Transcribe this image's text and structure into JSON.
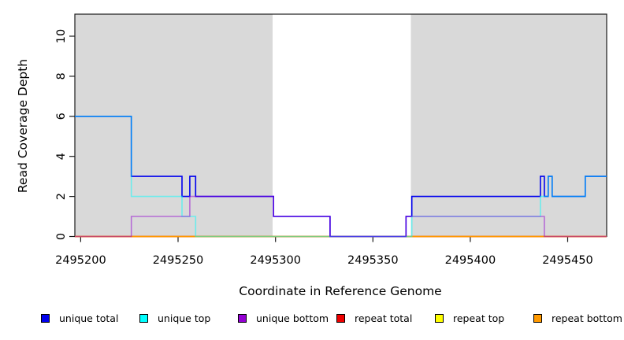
{
  "chart_data": {
    "type": "line",
    "line_style": "step",
    "title": "",
    "xlabel": "Coordinate in Reference Genome",
    "ylabel": "Read Coverage Depth",
    "xlim": [
      2495197,
      2495470
    ],
    "ylim": [
      0,
      11.1
    ],
    "xticks": [
      2495200,
      2495250,
      2495300,
      2495350,
      2495400,
      2495450
    ],
    "yticks": [
      0,
      2,
      4,
      6,
      8,
      10
    ],
    "grid": false,
    "legend_position": "bottom",
    "plot_background": "#FFFFFF",
    "shaded_regions": {
      "color": "#D9D9D9",
      "intervals": [
        [
          2495197,
          2495298.5
        ],
        [
          2495369.5,
          2495470
        ]
      ]
    },
    "series": [
      {
        "name": "unique total",
        "color": "#0000EE",
        "opacity": 1,
        "draw_order": 4,
        "steps": [
          [
            2495197,
            6
          ],
          [
            2495226,
            3
          ],
          [
            2495252,
            2
          ],
          [
            2495256,
            3
          ],
          [
            2495259,
            2
          ],
          [
            2495299,
            1
          ],
          [
            2495328,
            0
          ],
          [
            2495367,
            1
          ],
          [
            2495370,
            2
          ],
          [
            2495436,
            3
          ],
          [
            2495438,
            2
          ],
          [
            2495440,
            3
          ],
          [
            2495442,
            2
          ],
          [
            2495459,
            3
          ]
        ]
      },
      {
        "name": "unique top",
        "color": "#00FFFF",
        "opacity": 0.5,
        "draw_order": 5,
        "steps": [
          [
            2495197,
            6
          ],
          [
            2495226,
            2
          ],
          [
            2495252,
            1
          ],
          [
            2495259,
            0
          ],
          [
            2495370,
            1
          ],
          [
            2495436,
            2
          ],
          [
            2495440,
            3
          ],
          [
            2495442,
            2
          ],
          [
            2495459,
            3
          ]
        ]
      },
      {
        "name": "unique bottom",
        "color": "#9400D3",
        "opacity": 0.5,
        "draw_order": 6,
        "steps": [
          [
            2495197,
            0
          ],
          [
            2495226,
            1
          ],
          [
            2495256,
            2
          ],
          [
            2495299,
            1
          ],
          [
            2495328,
            0
          ],
          [
            2495367,
            1
          ],
          [
            2495438,
            0
          ]
        ]
      },
      {
        "name": "repeat total",
        "color": "#EE0000",
        "opacity": 1,
        "draw_order": 2,
        "steps": [
          [
            2495197,
            0
          ]
        ]
      },
      {
        "name": "repeat top",
        "color": "#FFFF00",
        "opacity": 1,
        "draw_order": 1,
        "steps": [
          [
            2495197,
            0
          ]
        ]
      },
      {
        "name": "repeat bottom",
        "color": "#FF9900",
        "opacity": 1,
        "draw_order": 3,
        "steps": [
          [
            2495197,
            0
          ]
        ]
      }
    ]
  }
}
